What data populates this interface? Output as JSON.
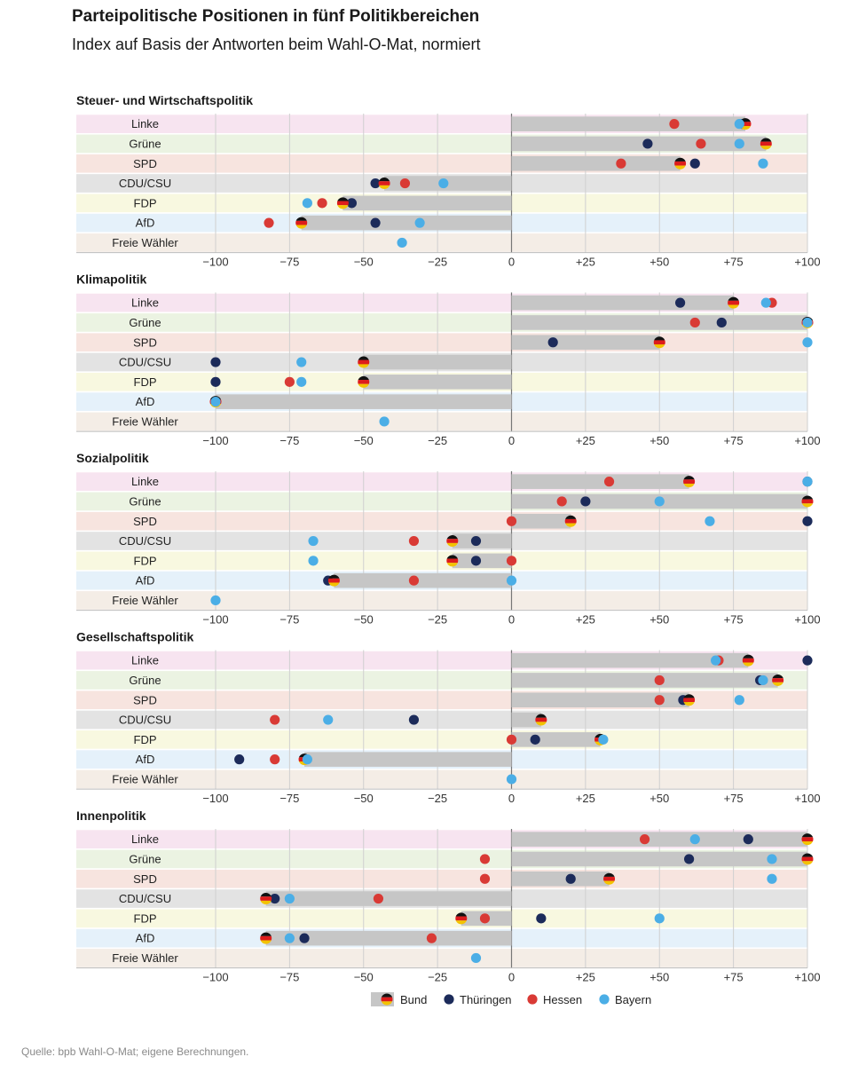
{
  "title": "Parteipolitische Positionen in fünf Politikbereichen",
  "subtitle": "Index auf Basis der Antworten beim Wahl-O-Mat, normiert",
  "source": "Quelle: bpb Wahl-O-Mat; eigene Berechnungen.",
  "colors": {
    "bund_bar": "#c6c6c6",
    "thueringen": "#1c2b5a",
    "hessen": "#d93a35",
    "bayern": "#4baee6",
    "flag_black": "#111111",
    "flag_red": "#dd1c1c",
    "flag_gold": "#f3c300",
    "row_bg": {
      "Linke": "#f7e4f0",
      "Grüne": "#ebf3e2",
      "SPD": "#f7e4df",
      "CDU/CSU": "#e3e3e3",
      "FDP": "#f8f8e0",
      "AfD": "#e5f1fa",
      "Freie Wähler": "#f4ede6"
    }
  },
  "legend": [
    {
      "key": "bund",
      "label": "Bund"
    },
    {
      "key": "thueringen",
      "label": "Thüringen"
    },
    {
      "key": "hessen",
      "label": "Hessen"
    },
    {
      "key": "bayern",
      "label": "Bayern"
    }
  ],
  "chart_data": {
    "type": "dot",
    "xlim": [
      -100,
      100
    ],
    "tick_values": [
      -100,
      -75,
      -50,
      -25,
      0,
      25,
      50,
      75,
      100
    ],
    "tick_labels": [
      "−100",
      "−75",
      "−50",
      "−25",
      "0",
      "+25",
      "+50",
      "+75",
      "+100"
    ],
    "parties": [
      "Linke",
      "Grüne",
      "SPD",
      "CDU/CSU",
      "FDP",
      "AfD",
      "Freie Wähler"
    ],
    "panels": [
      {
        "title": "Steuer- und Wirtschaftspolitik",
        "rows": [
          {
            "party": "Linke",
            "bund": 79,
            "thueringen": 78,
            "hessen": 55,
            "bayern": 77
          },
          {
            "party": "Grüne",
            "bund": 86,
            "thueringen": 46,
            "hessen": 64,
            "bayern": 77
          },
          {
            "party": "SPD",
            "bund": 57,
            "thueringen": 62,
            "hessen": 37,
            "bayern": 85
          },
          {
            "party": "CDU/CSU",
            "bund": -43,
            "thueringen": -46,
            "hessen": -36,
            "bayern": -23
          },
          {
            "party": "FDP",
            "bund": -57,
            "thueringen": -54,
            "hessen": -64,
            "bayern": -69
          },
          {
            "party": "AfD",
            "bund": -71,
            "thueringen": -46,
            "hessen": -82,
            "bayern": -31
          },
          {
            "party": "Freie Wähler",
            "bund": null,
            "thueringen": null,
            "hessen": null,
            "bayern": -37
          }
        ]
      },
      {
        "title": "Klimapolitik",
        "rows": [
          {
            "party": "Linke",
            "bund": 75,
            "thueringen": 57,
            "hessen": 88,
            "bayern": 86
          },
          {
            "party": "Grüne",
            "bund": 100,
            "thueringen": 71,
            "hessen": 62,
            "bayern": 100
          },
          {
            "party": "SPD",
            "bund": 50,
            "thueringen": 14,
            "hessen": 50,
            "bayern": 100
          },
          {
            "party": "CDU/CSU",
            "bund": -50,
            "thueringen": -100,
            "hessen": -50,
            "bayern": -71
          },
          {
            "party": "FDP",
            "bund": -50,
            "thueringen": -100,
            "hessen": -75,
            "bayern": -71
          },
          {
            "party": "AfD",
            "bund": -100,
            "thueringen": -100,
            "hessen": -100,
            "bayern": -100
          },
          {
            "party": "Freie Wähler",
            "bund": null,
            "thueringen": null,
            "hessen": null,
            "bayern": -43
          }
        ]
      },
      {
        "title": "Sozialpolitik",
        "rows": [
          {
            "party": "Linke",
            "bund": 60,
            "thueringen": 100,
            "hessen": 33,
            "bayern": 100
          },
          {
            "party": "Grüne",
            "bund": 100,
            "thueringen": 25,
            "hessen": 17,
            "bayern": 50
          },
          {
            "party": "SPD",
            "bund": 20,
            "thueringen": 100,
            "hessen": 0,
            "bayern": 67
          },
          {
            "party": "CDU/CSU",
            "bund": -20,
            "thueringen": -12,
            "hessen": -33,
            "bayern": -67
          },
          {
            "party": "FDP",
            "bund": -20,
            "thueringen": -12,
            "hessen": 0,
            "bayern": -67
          },
          {
            "party": "AfD",
            "bund": -60,
            "thueringen": -62,
            "hessen": -33,
            "bayern": 0
          },
          {
            "party": "Freie Wähler",
            "bund": null,
            "thueringen": null,
            "hessen": null,
            "bayern": -100
          }
        ]
      },
      {
        "title": "Gesellschaftspolitik",
        "rows": [
          {
            "party": "Linke",
            "bund": 80,
            "thueringen": 100,
            "hessen": 70,
            "bayern": 69
          },
          {
            "party": "Grüne",
            "bund": 90,
            "thueringen": 84,
            "hessen": 50,
            "bayern": 85
          },
          {
            "party": "SPD",
            "bund": 60,
            "thueringen": 58,
            "hessen": 50,
            "bayern": 77
          },
          {
            "party": "CDU/CSU",
            "bund": 10,
            "thueringen": -33,
            "hessen": -80,
            "bayern": -62
          },
          {
            "party": "FDP",
            "bund": 30,
            "thueringen": 8,
            "hessen": 0,
            "bayern": 31
          },
          {
            "party": "AfD",
            "bund": -70,
            "thueringen": -92,
            "hessen": -80,
            "bayern": -69
          },
          {
            "party": "Freie Wähler",
            "bund": null,
            "thueringen": null,
            "hessen": null,
            "bayern": 0
          }
        ]
      },
      {
        "title": "Innenpolitik",
        "rows": [
          {
            "party": "Linke",
            "bund": 100,
            "thueringen": 80,
            "hessen": 45,
            "bayern": 62
          },
          {
            "party": "Grüne",
            "bund": 100,
            "thueringen": 60,
            "hessen": -9,
            "bayern": 88
          },
          {
            "party": "SPD",
            "bund": 33,
            "thueringen": 20,
            "hessen": -9,
            "bayern": 88
          },
          {
            "party": "CDU/CSU",
            "bund": -83,
            "thueringen": -80,
            "hessen": -45,
            "bayern": -75
          },
          {
            "party": "FDP",
            "bund": -17,
            "thueringen": 10,
            "hessen": -9,
            "bayern": 50
          },
          {
            "party": "AfD",
            "bund": -83,
            "thueringen": -70,
            "hessen": -27,
            "bayern": -75
          },
          {
            "party": "Freie Wähler",
            "bund": null,
            "thueringen": null,
            "hessen": null,
            "bayern": -12
          }
        ]
      }
    ]
  }
}
